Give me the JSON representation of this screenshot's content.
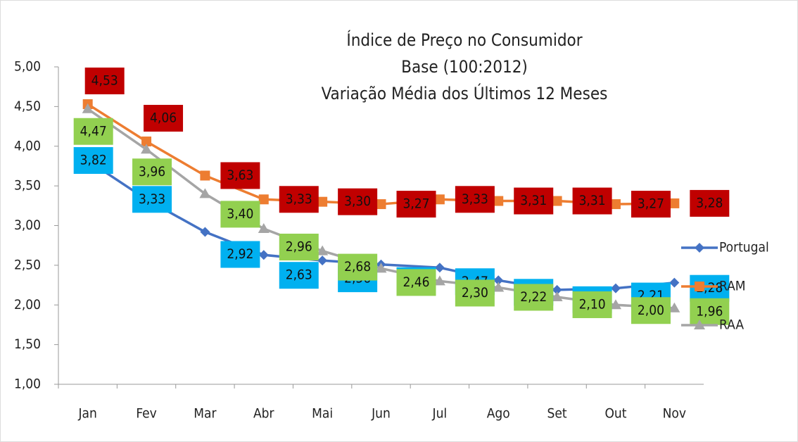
{
  "chart_data": {
    "type": "line",
    "title": [
      "Índice de Preço no Consumidor",
      "Base (100:2012)",
      "Variação Média dos Últimos 12 Meses"
    ],
    "categories": [
      "Jan",
      "Fev",
      "Mar",
      "Abr",
      "Mai",
      "Jun",
      "Jul",
      "Ago",
      "Set",
      "Out",
      "Nov"
    ],
    "series": [
      {
        "name": "Portugal",
        "color": "#4472c4",
        "label_color": "#00b0f0",
        "marker": "diamond",
        "values": [
          3.82,
          3.33,
          2.92,
          2.63,
          2.56,
          2.51,
          2.47,
          2.31,
          2.19,
          2.21,
          2.28
        ],
        "value_labels": [
          "3,82",
          "3,33",
          "2,92",
          "2,63",
          "2,56",
          "2,51",
          "2,47",
          "2,31",
          "2,19",
          "2,21",
          "2,28"
        ]
      },
      {
        "name": "RAM",
        "color": "#ed7d31",
        "label_color": "#c00000",
        "marker": "square",
        "values": [
          4.53,
          4.06,
          3.63,
          3.33,
          3.3,
          3.27,
          3.33,
          3.31,
          3.31,
          3.27,
          3.28
        ],
        "value_labels": [
          "4,53",
          "4,06",
          "3,63",
          "3,33",
          "3,30",
          "3,27",
          "3,33",
          "3,31",
          "3,31",
          "3,27",
          "3,28"
        ]
      },
      {
        "name": "RAA",
        "color": "#a5a5a5",
        "label_color": "#92d050",
        "marker": "triangle",
        "values": [
          4.47,
          3.96,
          3.4,
          2.96,
          2.68,
          2.46,
          2.3,
          2.22,
          2.1,
          2.0,
          1.96
        ],
        "value_labels": [
          "4,47",
          "3,96",
          "3,40",
          "2,96",
          "2,68",
          "2,46",
          "2,30",
          "2,22",
          "2,10",
          "2,00",
          "1,96"
        ]
      }
    ],
    "ylim": [
      1,
      5
    ],
    "yticks": [
      {
        "value": 1,
        "label": "1,00"
      },
      {
        "value": 1.5,
        "label": "1,50"
      },
      {
        "value": 2,
        "label": "2,00"
      },
      {
        "value": 2.5,
        "label": "2,50"
      },
      {
        "value": 3,
        "label": "3,00"
      },
      {
        "value": 3.5,
        "label": "3,50"
      },
      {
        "value": 4,
        "label": "4,00"
      },
      {
        "value": 4.5,
        "label": "4,50"
      },
      {
        "value": 5,
        "label": "5,00"
      }
    ],
    "grid": false,
    "legend": "right"
  }
}
